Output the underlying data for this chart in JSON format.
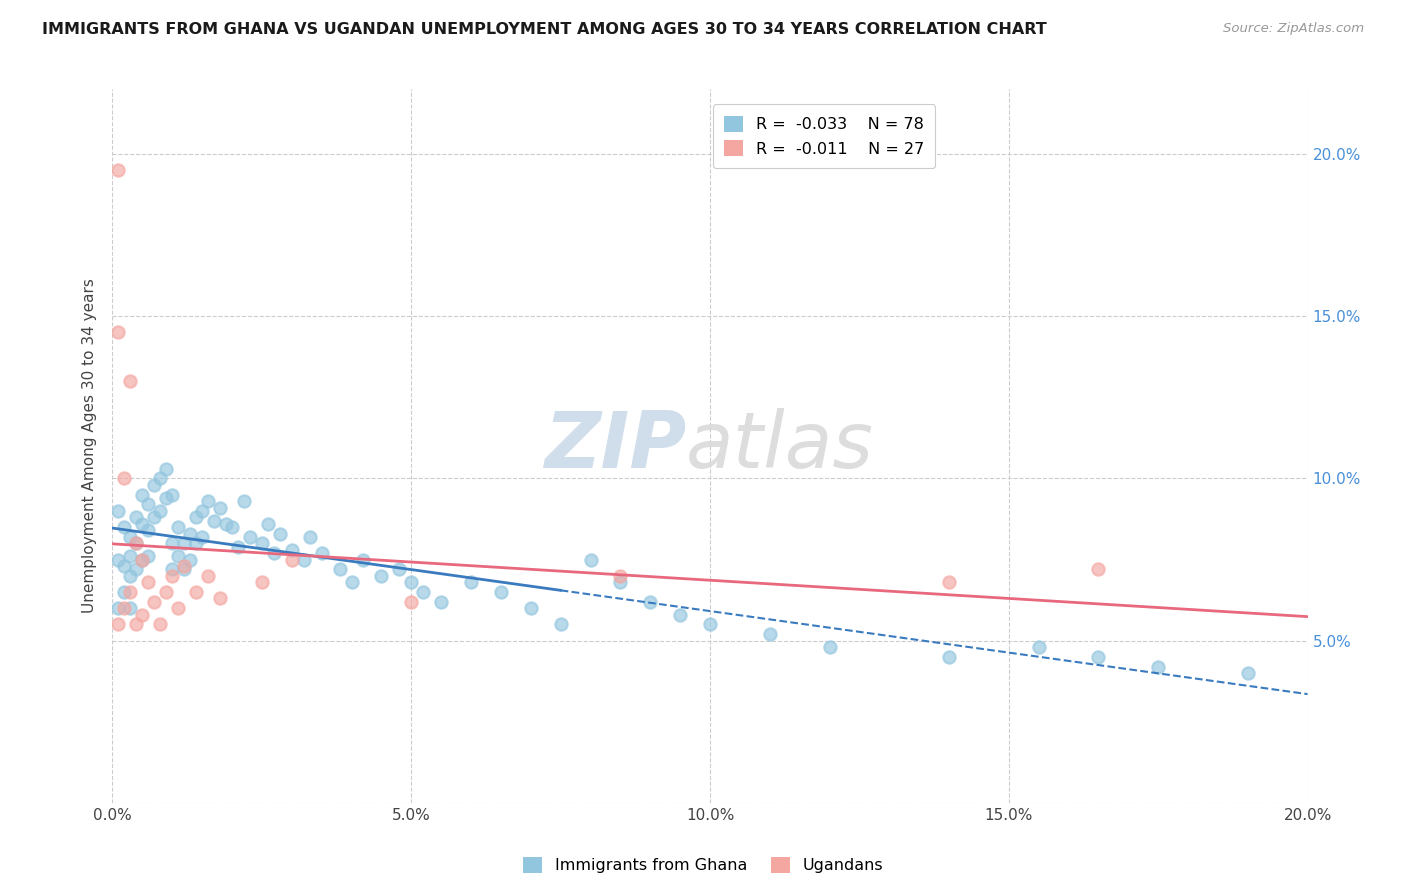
{
  "title": "IMMIGRANTS FROM GHANA VS UGANDAN UNEMPLOYMENT AMONG AGES 30 TO 34 YEARS CORRELATION CHART",
  "source": "Source: ZipAtlas.com",
  "ylabel": "Unemployment Among Ages 30 to 34 years",
  "xlim": [
    0.0,
    0.2
  ],
  "ylim": [
    0.0,
    0.22
  ],
  "x_ticks": [
    0.0,
    0.05,
    0.1,
    0.15,
    0.2
  ],
  "x_tick_labels": [
    "0.0%",
    "5.0%",
    "10.0%",
    "15.0%",
    "20.0%"
  ],
  "y_ticks": [
    0.0,
    0.05,
    0.1,
    0.15,
    0.2
  ],
  "y_tick_labels_right": [
    "",
    "5.0%",
    "10.0%",
    "15.0%",
    "20.0%"
  ],
  "ghana_R": "-0.033",
  "ghana_N": "78",
  "uganda_R": "-0.011",
  "uganda_N": "27",
  "ghana_color": "#92c5de",
  "uganda_color": "#f4a6a0",
  "ghana_line_color": "#3a7bbf",
  "uganda_line_color": "#e8697d",
  "ghana_x": [
    0.001,
    0.001,
    0.001,
    0.002,
    0.002,
    0.002,
    0.003,
    0.003,
    0.003,
    0.003,
    0.004,
    0.004,
    0.004,
    0.005,
    0.005,
    0.005,
    0.006,
    0.006,
    0.006,
    0.007,
    0.007,
    0.008,
    0.008,
    0.009,
    0.009,
    0.01,
    0.01,
    0.01,
    0.011,
    0.011,
    0.012,
    0.012,
    0.013,
    0.013,
    0.014,
    0.014,
    0.015,
    0.015,
    0.016,
    0.017,
    0.018,
    0.019,
    0.02,
    0.021,
    0.022,
    0.023,
    0.025,
    0.026,
    0.027,
    0.028,
    0.03,
    0.032,
    0.033,
    0.035,
    0.038,
    0.04,
    0.042,
    0.045,
    0.048,
    0.05,
    0.052,
    0.055,
    0.06,
    0.065,
    0.07,
    0.075,
    0.08,
    0.085,
    0.09,
    0.095,
    0.1,
    0.11,
    0.12,
    0.14,
    0.155,
    0.165,
    0.175,
    0.19
  ],
  "ghana_y": [
    0.075,
    0.09,
    0.06,
    0.085,
    0.073,
    0.065,
    0.082,
    0.076,
    0.07,
    0.06,
    0.088,
    0.08,
    0.072,
    0.095,
    0.086,
    0.075,
    0.092,
    0.084,
    0.076,
    0.098,
    0.088,
    0.1,
    0.09,
    0.103,
    0.094,
    0.08,
    0.095,
    0.072,
    0.085,
    0.076,
    0.08,
    0.072,
    0.083,
    0.075,
    0.088,
    0.08,
    0.09,
    0.082,
    0.093,
    0.087,
    0.091,
    0.086,
    0.085,
    0.079,
    0.093,
    0.082,
    0.08,
    0.086,
    0.077,
    0.083,
    0.078,
    0.075,
    0.082,
    0.077,
    0.072,
    0.068,
    0.075,
    0.07,
    0.072,
    0.068,
    0.065,
    0.062,
    0.068,
    0.065,
    0.06,
    0.055,
    0.075,
    0.068,
    0.062,
    0.058,
    0.055,
    0.052,
    0.048,
    0.045,
    0.048,
    0.045,
    0.042,
    0.04
  ],
  "uganda_x": [
    0.001,
    0.001,
    0.001,
    0.002,
    0.002,
    0.003,
    0.003,
    0.004,
    0.004,
    0.005,
    0.005,
    0.006,
    0.007,
    0.008,
    0.009,
    0.01,
    0.011,
    0.012,
    0.014,
    0.016,
    0.018,
    0.025,
    0.03,
    0.05,
    0.085,
    0.14,
    0.165
  ],
  "uganda_y": [
    0.195,
    0.145,
    0.055,
    0.1,
    0.06,
    0.13,
    0.065,
    0.08,
    0.055,
    0.075,
    0.058,
    0.068,
    0.062,
    0.055,
    0.065,
    0.07,
    0.06,
    0.073,
    0.065,
    0.07,
    0.063,
    0.068,
    0.075,
    0.062,
    0.07,
    0.068,
    0.072
  ]
}
